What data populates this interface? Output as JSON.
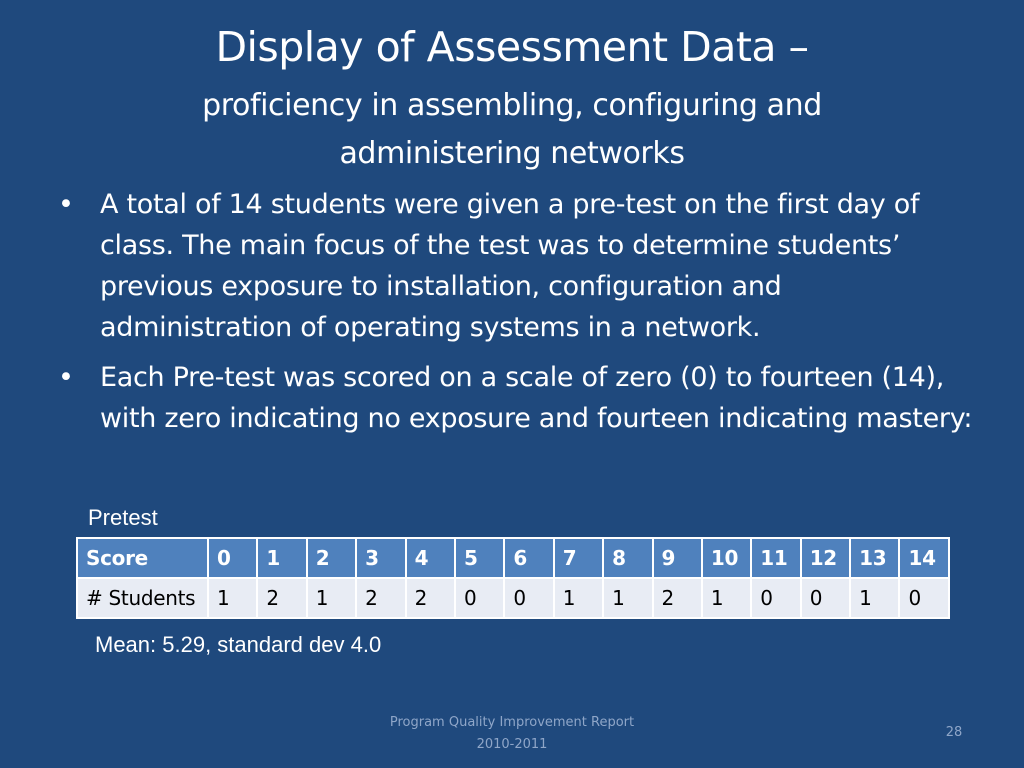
{
  "slide": {
    "title": "Display of Assessment Data –",
    "subtitle_line1": "proficiency in assembling, configuring and",
    "subtitle_line2": "administering networks",
    "bullet_symbol": "•",
    "bullets": [
      "A total of 14 students were given a pre-test on the first day of class. The main focus of the test was to determine students’ previous exposure to installation, configuration and administration of operating systems in a network.",
      "Each Pre-test was scored on a scale of zero (0) to fourteen (14), with zero indicating no exposure and fourteen indicating mastery:"
    ]
  },
  "table": {
    "caption": "Pretest",
    "row_header_1": "Score",
    "row_header_2": "# Students",
    "scores": [
      "0",
      "1",
      "2",
      "3",
      "4",
      "5",
      "6",
      "7",
      "8",
      "9",
      "10",
      "11",
      "12",
      "13",
      "14"
    ],
    "students": [
      "1",
      "2",
      "1",
      "2",
      "2",
      "0",
      "0",
      "1",
      "1",
      "2",
      "1",
      "0",
      "0",
      "1",
      "0"
    ],
    "header_bg": "#4f81bd",
    "body_bg": "#e8ecf4"
  },
  "stats": "Mean: 5.29, standard dev 4.0",
  "footer": {
    "line1": "Program Quality Improvement Report",
    "line2": "2010-2011",
    "page_number": "28"
  },
  "colors": {
    "background": "#1f497d",
    "text": "#ffffff",
    "footer_text": "#8fa6c8"
  }
}
